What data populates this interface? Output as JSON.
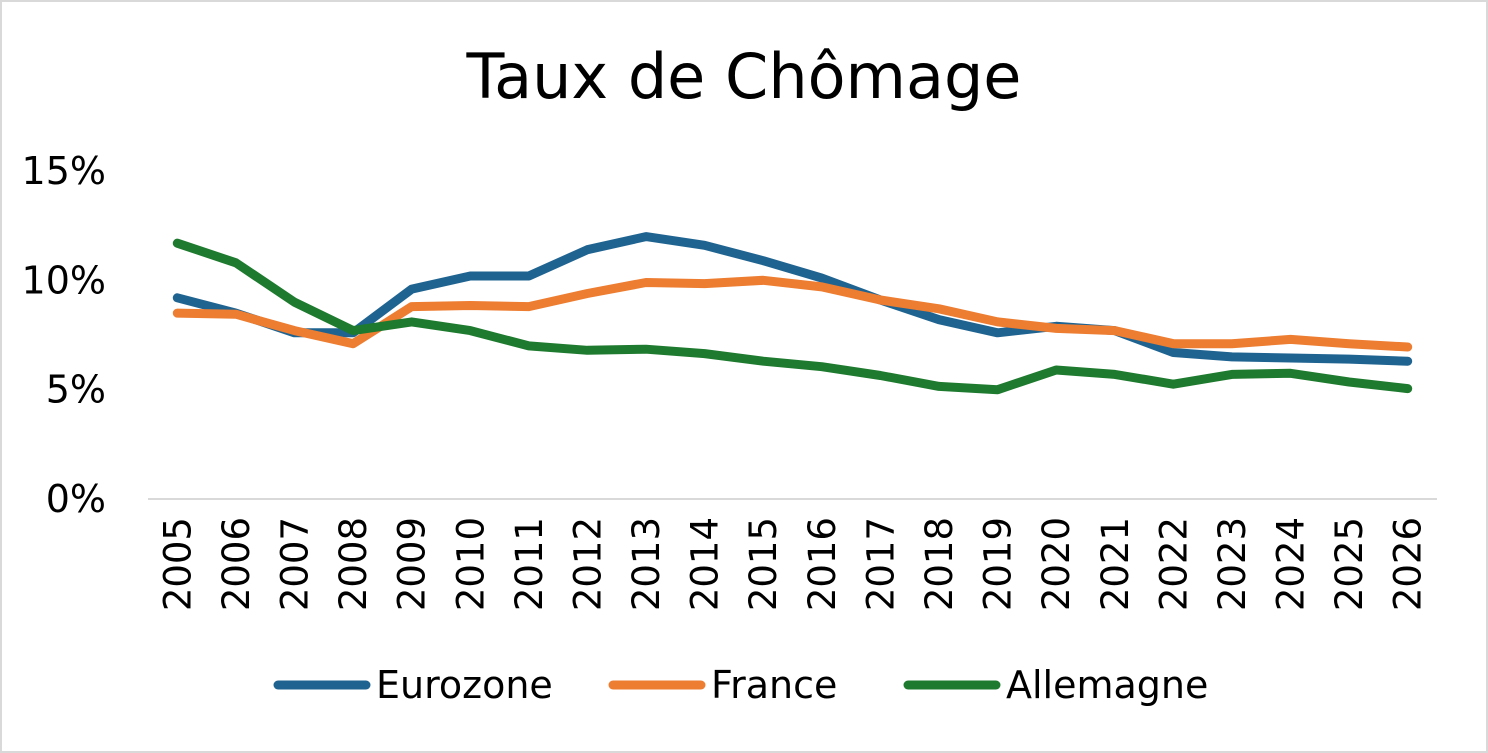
{
  "chart_data": {
    "type": "line",
    "title": "Taux de Chômage",
    "xlabel": "",
    "ylabel": "",
    "ylim": [
      0,
      15
    ],
    "y_ticks": [
      {
        "value": 0,
        "label": "0%"
      },
      {
        "value": 5,
        "label": "5%"
      },
      {
        "value": 10,
        "label": "10%"
      },
      {
        "value": 15,
        "label": "15%"
      }
    ],
    "categories": [
      "2005",
      "2006",
      "2007",
      "2008",
      "2009",
      "2010",
      "2011",
      "2012",
      "2013",
      "2014",
      "2015",
      "2016",
      "2017",
      "2018",
      "2019",
      "2020",
      "2021",
      "2022",
      "2023",
      "2024",
      "2025",
      "2026"
    ],
    "series": [
      {
        "name": "Eurozone",
        "color": "#1f6391",
        "values": [
          9.2,
          8.5,
          7.6,
          7.6,
          9.6,
          10.2,
          10.2,
          11.4,
          12.0,
          11.6,
          10.9,
          10.1,
          9.1,
          8.2,
          7.6,
          7.9,
          7.7,
          6.7,
          6.5,
          6.45,
          6.4,
          6.3
        ]
      },
      {
        "name": "France",
        "color": "#ed7d31",
        "values": [
          8.5,
          8.45,
          7.7,
          7.1,
          8.8,
          8.85,
          8.8,
          9.4,
          9.9,
          9.85,
          10.0,
          9.7,
          9.1,
          8.7,
          8.1,
          7.8,
          7.7,
          7.1,
          7.1,
          7.3,
          7.1,
          6.95
        ]
      },
      {
        "name": "Allemagne",
        "color": "#1e7a2e",
        "values": [
          11.7,
          10.8,
          9.0,
          7.7,
          8.1,
          7.7,
          7.0,
          6.8,
          6.85,
          6.65,
          6.3,
          6.05,
          5.65,
          5.15,
          5.0,
          5.9,
          5.7,
          5.25,
          5.7,
          5.75,
          5.35,
          5.05
        ]
      }
    ],
    "grid": false,
    "legend_position": "bottom"
  }
}
